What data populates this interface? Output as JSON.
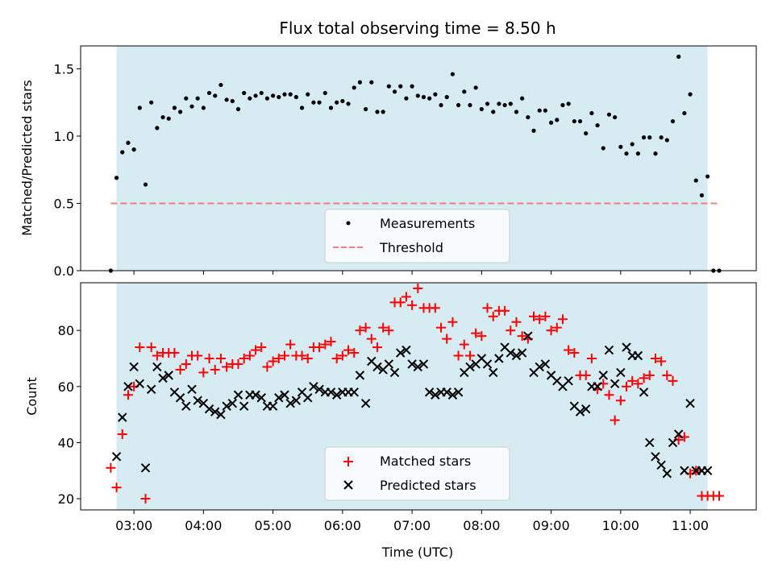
{
  "chart_data": [
    {
      "type": "scatter",
      "title": "Flux total observing time = 8.50 h",
      "xlabel": "",
      "ylabel": "Matched/Predicted stars",
      "xlim": [
        "02:14",
        "11:57"
      ],
      "ylim": [
        0,
        1.67
      ],
      "yticks": [
        0.0,
        0.5,
        1.0,
        1.5
      ],
      "ytick_labels": [
        "0.0",
        "0.5",
        "1.0",
        "1.5"
      ],
      "grid": false,
      "legend_position": "bottom-center",
      "shaded_span": [
        "02:45",
        "11:15"
      ],
      "shade_color": "#add8e6",
      "series": [
        {
          "name": "Measurements",
          "marker": "dot",
          "color": "#000000",
          "x": [
            "02:40",
            "02:45",
            "02:50",
            "02:55",
            "03:00",
            "03:05",
            "03:10",
            "03:15",
            "03:20",
            "03:25",
            "03:30",
            "03:35",
            "03:40",
            "03:45",
            "03:50",
            "03:55",
            "04:00",
            "04:05",
            "04:10",
            "04:15",
            "04:20",
            "04:25",
            "04:30",
            "04:35",
            "04:40",
            "04:45",
            "04:50",
            "04:55",
            "05:00",
            "05:05",
            "05:10",
            "05:15",
            "05:20",
            "05:25",
            "05:30",
            "05:35",
            "05:40",
            "05:45",
            "05:50",
            "05:55",
            "06:00",
            "06:05",
            "06:10",
            "06:15",
            "06:20",
            "06:25",
            "06:30",
            "06:35",
            "06:40",
            "06:45",
            "06:50",
            "06:55",
            "07:00",
            "07:05",
            "07:10",
            "07:15",
            "07:20",
            "07:25",
            "07:30",
            "07:35",
            "07:40",
            "07:45",
            "07:50",
            "07:55",
            "08:00",
            "08:05",
            "08:10",
            "08:15",
            "08:20",
            "08:25",
            "08:30",
            "08:35",
            "08:40",
            "08:45",
            "08:50",
            "08:55",
            "09:00",
            "09:05",
            "09:10",
            "09:15",
            "09:20",
            "09:25",
            "09:30",
            "09:35",
            "09:40",
            "09:45",
            "09:50",
            "09:55",
            "10:00",
            "10:05",
            "10:10",
            "10:15",
            "10:20",
            "10:25",
            "10:30",
            "10:35",
            "10:40",
            "10:45",
            "10:50",
            "10:55",
            "11:00",
            "11:05",
            "11:10",
            "11:15",
            "11:20",
            "11:25"
          ],
          "y": [
            0.0,
            0.69,
            0.88,
            0.95,
            0.9,
            1.21,
            0.64,
            1.25,
            1.06,
            1.14,
            1.13,
            1.21,
            1.18,
            1.28,
            1.22,
            1.28,
            1.21,
            1.32,
            1.3,
            1.38,
            1.27,
            1.26,
            1.2,
            1.32,
            1.28,
            1.3,
            1.32,
            1.28,
            1.3,
            1.29,
            1.31,
            1.31,
            1.29,
            1.21,
            1.31,
            1.25,
            1.25,
            1.32,
            1.21,
            1.25,
            1.26,
            1.24,
            1.36,
            1.4,
            1.2,
            1.4,
            1.18,
            1.18,
            1.37,
            1.33,
            1.37,
            1.28,
            1.37,
            1.3,
            1.29,
            1.28,
            1.31,
            1.23,
            1.29,
            1.46,
            1.23,
            1.33,
            1.23,
            1.36,
            1.2,
            1.24,
            1.18,
            1.24,
            1.23,
            1.24,
            1.18,
            1.28,
            1.14,
            1.04,
            1.19,
            1.19,
            1.1,
            1.12,
            1.23,
            1.24,
            1.11,
            1.11,
            1.02,
            1.17,
            1.08,
            0.91,
            1.16,
            1.14,
            0.92,
            0.87,
            0.94,
            0.87,
            0.99,
            0.99,
            0.87,
            0.99,
            0.97,
            1.11,
            1.59,
            1.17,
            1.31,
            0.67,
            0.56,
            0.7,
            0.0,
            0.0
          ]
        },
        {
          "name": "Threshold",
          "type": "line",
          "style": "dashed",
          "color": "#f08080",
          "x": [
            "02:40",
            "11:25"
          ],
          "y": [
            0.5,
            0.5
          ]
        }
      ]
    },
    {
      "type": "scatter",
      "title": "",
      "xlabel": "Time (UTC)",
      "ylabel": "Count",
      "xlim": [
        "02:14",
        "11:57"
      ],
      "ylim": [
        16,
        97
      ],
      "yticks": [
        20,
        40,
        60,
        80
      ],
      "ytick_labels": [
        "20",
        "40",
        "60",
        "80"
      ],
      "xticks": [
        "03:00",
        "04:00",
        "05:00",
        "06:00",
        "07:00",
        "08:00",
        "09:00",
        "10:00",
        "11:00"
      ],
      "xtick_labels": [
        "03:00",
        "04:00",
        "05:00",
        "06:00",
        "07:00",
        "08:00",
        "09:00",
        "10:00",
        "11:00"
      ],
      "grid": false,
      "legend_position": "bottom-center",
      "shaded_span": [
        "02:45",
        "11:15"
      ],
      "shade_color": "#add8e6",
      "series": [
        {
          "name": "Matched stars",
          "marker": "plus",
          "color": "#ff0000",
          "x": [
            "02:40",
            "02:45",
            "02:50",
            "02:55",
            "03:00",
            "03:05",
            "03:10",
            "03:15",
            "03:20",
            "03:25",
            "03:30",
            "03:35",
            "03:40",
            "03:45",
            "03:50",
            "03:55",
            "04:00",
            "04:05",
            "04:10",
            "04:15",
            "04:20",
            "04:25",
            "04:30",
            "04:35",
            "04:40",
            "04:45",
            "04:50",
            "04:55",
            "05:00",
            "05:05",
            "05:10",
            "05:15",
            "05:20",
            "05:25",
            "05:30",
            "05:35",
            "05:40",
            "05:45",
            "05:50",
            "05:55",
            "06:00",
            "06:05",
            "06:10",
            "06:15",
            "06:20",
            "06:25",
            "06:30",
            "06:35",
            "06:40",
            "06:45",
            "06:50",
            "06:55",
            "07:00",
            "07:05",
            "07:10",
            "07:15",
            "07:20",
            "07:25",
            "07:30",
            "07:35",
            "07:40",
            "07:45",
            "07:50",
            "07:55",
            "08:00",
            "08:05",
            "08:10",
            "08:15",
            "08:20",
            "08:25",
            "08:30",
            "08:35",
            "08:40",
            "08:45",
            "08:50",
            "08:55",
            "09:00",
            "09:05",
            "09:10",
            "09:15",
            "09:20",
            "09:25",
            "09:30",
            "09:35",
            "09:40",
            "09:45",
            "09:50",
            "09:55",
            "10:00",
            "10:05",
            "10:10",
            "10:15",
            "10:20",
            "10:25",
            "10:30",
            "10:35",
            "10:40",
            "10:45",
            "10:50",
            "10:55",
            "11:00",
            "11:05",
            "11:10",
            "11:15",
            "11:20",
            "11:25"
          ],
          "y": [
            31,
            24,
            43,
            57,
            60,
            74,
            20,
            74,
            71,
            72,
            72,
            72,
            66,
            68,
            71,
            71,
            65,
            70,
            66,
            70,
            67,
            68,
            68,
            70,
            71,
            73,
            74,
            67,
            69,
            70,
            71,
            75,
            71,
            71,
            70,
            74,
            74,
            75,
            76,
            70,
            71,
            73,
            72,
            80,
            81,
            77,
            74,
            81,
            80,
            90,
            90,
            92,
            89,
            95,
            88,
            88,
            88,
            81,
            77,
            83,
            71,
            75,
            71,
            79,
            78,
            88,
            85,
            87,
            87,
            80,
            83,
            78,
            77,
            85,
            84,
            85,
            80,
            81,
            84,
            73,
            72,
            64,
            64,
            70,
            59,
            61,
            57,
            48,
            55,
            60,
            62,
            61,
            63,
            64,
            70,
            69,
            64,
            62,
            41,
            42,
            29,
            30,
            21,
            21,
            21,
            21
          ]
        },
        {
          "name": "Predicted stars",
          "marker": "x",
          "color": "#000000",
          "x": [
            "02:45",
            "02:50",
            "02:55",
            "03:00",
            "03:05",
            "03:10",
            "03:15",
            "03:20",
            "03:25",
            "03:30",
            "03:35",
            "03:40",
            "03:45",
            "03:50",
            "03:55",
            "04:00",
            "04:05",
            "04:10",
            "04:15",
            "04:20",
            "04:25",
            "04:30",
            "04:35",
            "04:40",
            "04:45",
            "04:50",
            "04:55",
            "05:00",
            "05:05",
            "05:10",
            "05:15",
            "05:20",
            "05:25",
            "05:30",
            "05:35",
            "05:40",
            "05:45",
            "05:50",
            "05:55",
            "06:00",
            "06:05",
            "06:10",
            "06:15",
            "06:20",
            "06:25",
            "06:30",
            "06:35",
            "06:40",
            "06:45",
            "06:50",
            "06:55",
            "07:00",
            "07:05",
            "07:10",
            "07:15",
            "07:20",
            "07:25",
            "07:30",
            "07:35",
            "07:40",
            "07:45",
            "07:50",
            "07:55",
            "08:00",
            "08:05",
            "08:10",
            "08:15",
            "08:20",
            "08:25",
            "08:30",
            "08:35",
            "08:40",
            "08:45",
            "08:50",
            "08:55",
            "09:00",
            "09:05",
            "09:10",
            "09:15",
            "09:20",
            "09:25",
            "09:30",
            "09:35",
            "09:40",
            "09:45",
            "09:50",
            "09:55",
            "10:00",
            "10:05",
            "10:10",
            "10:15",
            "10:20",
            "10:25",
            "10:30",
            "10:35",
            "10:40",
            "10:45",
            "10:50",
            "10:55",
            "11:00",
            "11:05",
            "11:10",
            "11:15"
          ],
          "y": [
            35,
            49,
            60,
            67,
            61,
            31,
            59,
            67,
            63,
            64,
            58,
            56,
            53,
            59,
            55,
            54,
            52,
            51,
            50,
            53,
            54,
            57,
            53,
            57,
            57,
            56,
            53,
            53,
            56,
            57,
            54,
            55,
            58,
            56,
            60,
            59,
            58,
            58,
            57,
            58,
            58,
            58,
            64,
            54,
            69,
            67,
            66,
            68,
            65,
            72,
            73,
            68,
            67,
            68,
            58,
            57,
            58,
            58,
            57,
            58,
            65,
            67,
            68,
            70,
            68,
            65,
            70,
            74,
            72,
            71,
            72,
            78,
            65,
            67,
            68,
            64,
            62,
            60,
            62,
            53,
            51,
            52,
            60,
            60,
            64,
            73,
            61,
            65,
            74,
            71,
            71,
            58,
            40,
            35,
            32,
            29,
            40,
            43,
            30,
            54,
            30,
            30,
            30
          ]
        }
      ]
    }
  ],
  "legend": {
    "measurements_label": "Measurements",
    "threshold_label": "Threshold",
    "matched_label": "Matched stars",
    "predicted_label": "Predicted stars"
  },
  "titles": {
    "main": "Flux total observing time = 8.50 h",
    "top_ylabel": "Matched/Predicted stars",
    "bottom_ylabel": "Count",
    "xlabel": "Time (UTC)"
  }
}
